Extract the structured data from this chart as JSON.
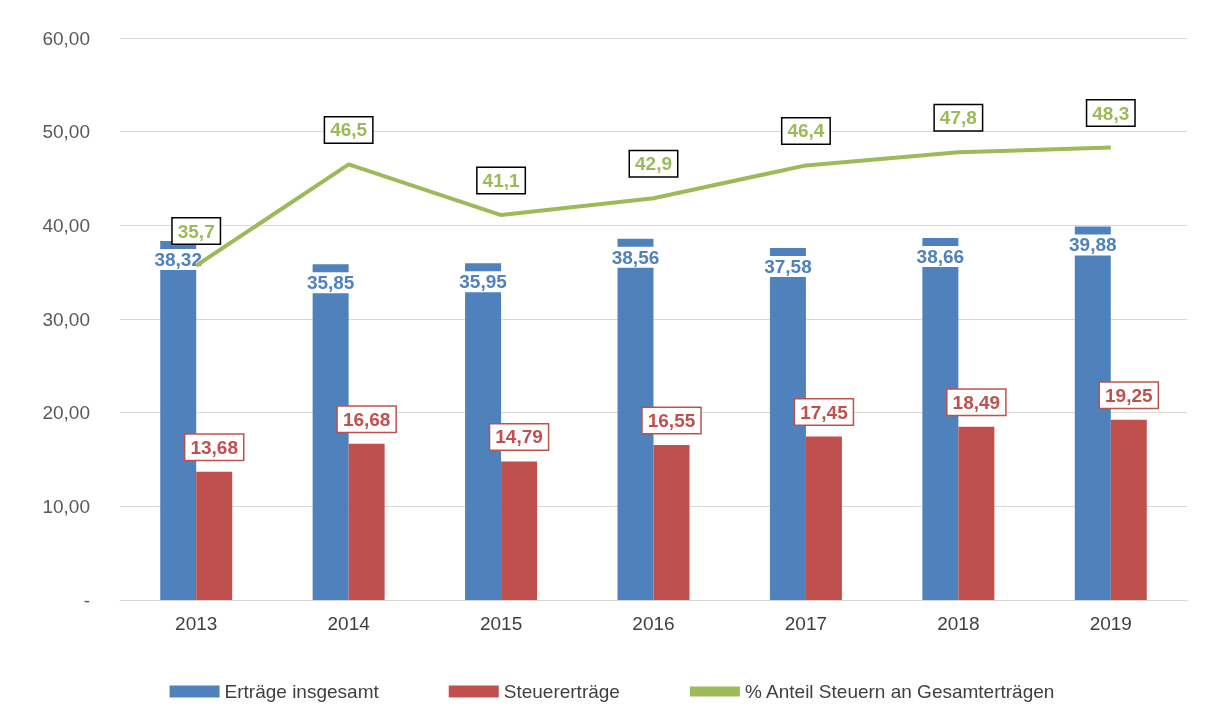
{
  "chart_data": {
    "type": "bar",
    "categories": [
      "2013",
      "2014",
      "2015",
      "2016",
      "2017",
      "2018",
      "2019"
    ],
    "series": [
      {
        "name": "Erträge insgesamt",
        "color": "#4f81bd",
        "values": [
          38.32,
          35.85,
          35.95,
          38.56,
          37.58,
          38.66,
          39.88
        ],
        "value_labels": [
          "38,32",
          "35,85",
          "35,95",
          "38,56",
          "37,58",
          "38,66",
          "39,88"
        ]
      },
      {
        "name": "Steuererträge",
        "color": "#c0504d",
        "values": [
          13.68,
          16.68,
          14.79,
          16.55,
          17.45,
          18.49,
          19.25
        ],
        "value_labels": [
          "13,68",
          "16,68",
          "14,79",
          "16,55",
          "17,45",
          "18,49",
          "19,25"
        ]
      },
      {
        "name": "% Anteil Steuern an Gesamterträgen",
        "type": "line",
        "color": "#9bbb59",
        "values": [
          35.7,
          46.5,
          41.1,
          42.9,
          46.4,
          47.8,
          48.3
        ],
        "value_labels": [
          "35,7",
          "46,5",
          "41,1",
          "42,9",
          "46,4",
          "47,8",
          "48,3"
        ]
      }
    ],
    "ylim": [
      0,
      60
    ],
    "yticks": [
      {
        "value": 0,
        "label": "-"
      },
      {
        "value": 10,
        "label": "10,00"
      },
      {
        "value": 20,
        "label": "20,00"
      },
      {
        "value": 30,
        "label": "30,00"
      },
      {
        "value": 40,
        "label": "40,00"
      },
      {
        "value": 50,
        "label": "50,00"
      },
      {
        "value": 60,
        "label": "60,00"
      }
    ],
    "grid": "y",
    "legend": "bottom",
    "marker": "none"
  }
}
